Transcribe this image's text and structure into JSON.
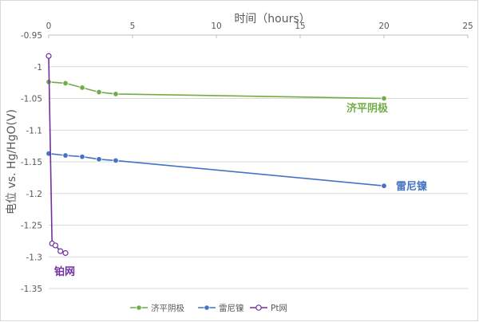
{
  "chart_data": {
    "type": "line",
    "xlabel": "时间（hours）",
    "ylabel": "电位 vs. Hg/HgO(V)",
    "xlim": [
      0,
      25
    ],
    "ylim": [
      -1.35,
      -0.95
    ],
    "x_ticks": [
      "0",
      "5",
      "10",
      "15",
      "20",
      "25"
    ],
    "y_ticks": [
      "-0.95",
      "-1",
      "-1.05",
      "-1.1",
      "-1.15",
      "-1.2",
      "-1.25",
      "-1.3",
      "-1.35"
    ],
    "x_axis_position": "top",
    "grid": "horizontal",
    "legend_position": "bottom",
    "series": [
      {
        "name": "济平阴极",
        "color": "#70ad47",
        "marker": "filled-circle",
        "x": [
          0,
          1,
          2,
          3,
          4,
          20
        ],
        "y": [
          -1.024,
          -1.026,
          -1.033,
          -1.04,
          -1.043,
          -1.05
        ]
      },
      {
        "name": "雷尼镍",
        "color": "#4472c4",
        "marker": "filled-circle",
        "x": [
          0,
          1,
          2,
          3,
          4,
          20
        ],
        "y": [
          -1.137,
          -1.14,
          -1.142,
          -1.146,
          -1.148,
          -1.188
        ]
      },
      {
        "name": "Pt网",
        "color": "#7030a0",
        "marker": "hollow-circle",
        "x": [
          0,
          0.2,
          0.4,
          0.7,
          1.0
        ],
        "y": [
          -0.983,
          -1.279,
          -1.282,
          -1.291,
          -1.294
        ]
      }
    ],
    "annotations": [
      "济平阴极",
      "雷尼镍",
      "铂网"
    ]
  }
}
